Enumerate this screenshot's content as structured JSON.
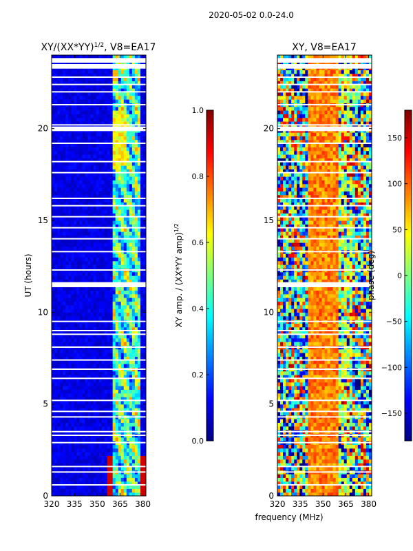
{
  "figure": {
    "suptitle": "2020-05-02 0.0-24.0",
    "xlabel": "frequency (MHz)"
  },
  "colors": {
    "jet": [
      "#00007f",
      "#0000ff",
      "#007fff",
      "#00ffff",
      "#7fff7f",
      "#ffff00",
      "#ff7f00",
      "#ff0000",
      "#7f0000"
    ],
    "flag_white": "#ffffff"
  },
  "chart_data": [
    {
      "type": "heatmap",
      "title_base": "XY/(XX*YY)",
      "title_exp": "1/2",
      "title_suffix": ", V8=EA17",
      "ylabel": "UT (hours)",
      "xlim": [
        320,
        382
      ],
      "ylim": [
        0,
        24
      ],
      "xticks": [
        320,
        335,
        350,
        365,
        380
      ],
      "yticks": [
        0,
        5,
        10,
        15,
        20
      ],
      "colorbar": {
        "label_base": "XY amp. / (XX*YY amp)",
        "label_exp": "1/2",
        "range": [
          0.0,
          1.0
        ],
        "ticks": [
          "0.0",
          "0.2",
          "0.4",
          "0.6",
          "0.8",
          "1.0"
        ]
      }
    },
    {
      "type": "heatmap",
      "title": "XY, V8=EA17",
      "xlim": [
        320,
        382
      ],
      "ylim": [
        0,
        24
      ],
      "xticks": [
        320,
        335,
        350,
        365,
        380
      ],
      "yticks": [
        0,
        5,
        10,
        15,
        20
      ],
      "colorbar": {
        "label": "phase (deg)",
        "range": [
          -180,
          180
        ],
        "ticks": [
          "−150",
          "−100",
          "−50",
          "0",
          "50",
          "100",
          "150"
        ]
      }
    }
  ],
  "flagged_hours": [
    0.6,
    1.3,
    1.6,
    2.9,
    3.3,
    3.5,
    4.3,
    4.6,
    5.2,
    6.4,
    6.9,
    7.4,
    8.1,
    8.8,
    9.0,
    9.5,
    11.4,
    11.6,
    12.3,
    13.3,
    14.0,
    14.6,
    15.2,
    15.8,
    16.2,
    17.6,
    18.2,
    19.2,
    19.9,
    20.2,
    21.3,
    22.0,
    22.4,
    22.8,
    23.3,
    23.8
  ],
  "flagged_hours_thick": [
    11.5,
    20.0,
    23.4,
    23.7
  ]
}
